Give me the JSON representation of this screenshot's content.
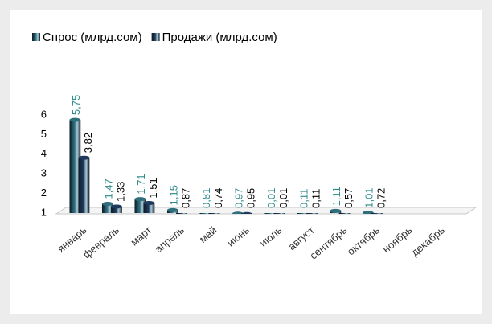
{
  "chart_data": {
    "type": "bar",
    "categories": [
      "январь",
      "февраль",
      "март",
      "апрель",
      "май",
      "июнь",
      "июль",
      "август",
      "сентябрь",
      "октябрь",
      "ноябрь",
      "декабрь"
    ],
    "series": [
      {
        "name": "Спрос (млрд.сом)",
        "color": "#2f6f7c",
        "label_color": "#2e8b8b",
        "values": [
          5.75,
          1.47,
          1.71,
          1.15,
          0.81,
          0.97,
          0.01,
          0.11,
          1.11,
          1.01,
          null,
          null
        ],
        "value_labels": [
          "5,75",
          "1,47",
          "1,71",
          "1,15",
          "0,81",
          "0,97",
          "0,01",
          "0,11",
          "1,11",
          "1,01",
          null,
          null
        ]
      },
      {
        "name": "Продажи (млрд.сом)",
        "color": "#1f3a5c",
        "label_color": "#000000",
        "values": [
          3.82,
          1.33,
          1.51,
          0.87,
          0.74,
          0.95,
          0.01,
          0.11,
          0.57,
          0.72,
          null,
          null
        ],
        "value_labels": [
          "3,82",
          "1,33",
          "1,51",
          "0,87",
          "0,74",
          "0,95",
          "0,01",
          "0,11",
          "0,57",
          "0,72",
          null,
          null
        ]
      }
    ],
    "ylim": [
      1,
      6
    ],
    "yticks": [
      1,
      2,
      3,
      4,
      5,
      6
    ]
  }
}
